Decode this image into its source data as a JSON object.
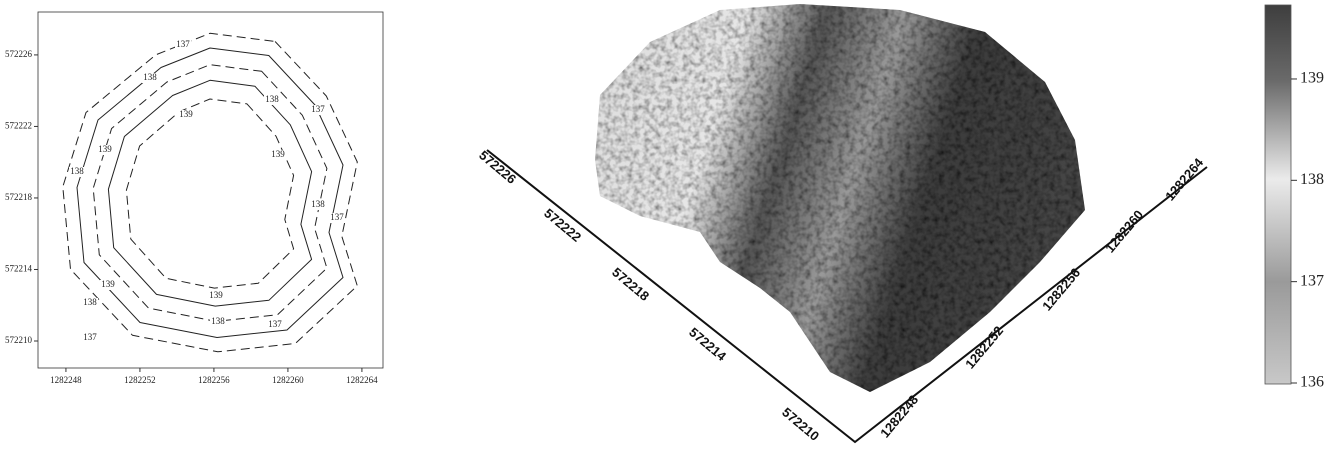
{
  "contour_map": {
    "xlim": [
      1282246.49,
      1282265.14
    ],
    "xticks": [
      1282248,
      1282252,
      1282256,
      1282260,
      1282264
    ],
    "ylim": [
      572208.49,
      572228.4
    ],
    "yticks": [
      572210,
      572214,
      572218,
      572222,
      572226
    ],
    "contour_labels": [
      "137",
      "138",
      "138",
      "137",
      "139",
      "139",
      "139",
      "138",
      "138",
      "137",
      "139",
      "139",
      "138",
      "138",
      "137",
      "137"
    ]
  },
  "surface_3d": {
    "y_axis_ticks": [
      "572226",
      "572222",
      "572218",
      "572214",
      "572210"
    ],
    "x_axis_ticks": [
      "1282248",
      "1282252",
      "1282256",
      "1282260",
      "1282264"
    ]
  },
  "colorbar": {
    "lim": [
      135.99,
      139.73
    ],
    "ticks": [
      136,
      137,
      138,
      139
    ]
  }
}
